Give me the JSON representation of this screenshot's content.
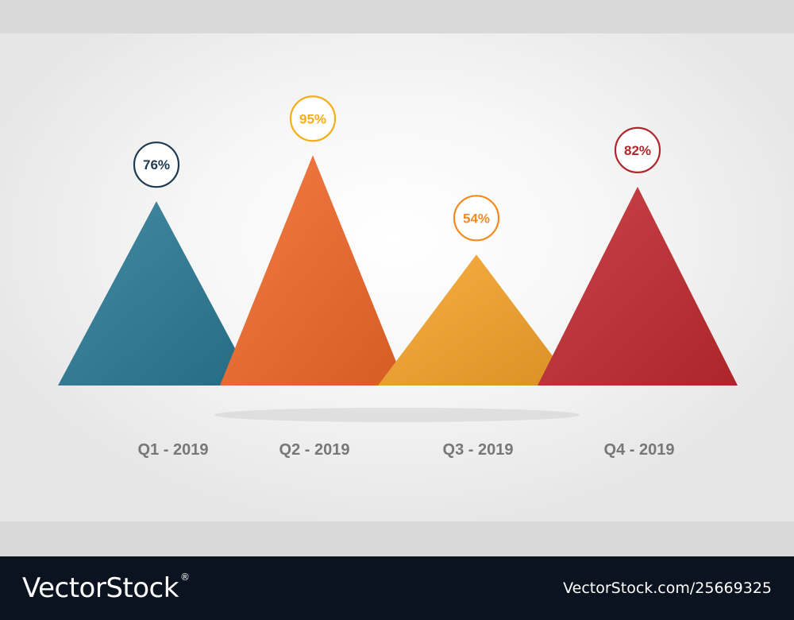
{
  "chart_data": {
    "type": "bar",
    "categories": [
      "Q1 - 2019",
      "Q2 - 2019",
      "Q3 - 2019",
      "Q4 - 2019"
    ],
    "values": [
      76,
      95,
      54,
      82
    ],
    "value_labels": [
      "76%",
      "95%",
      "54%",
      "82%"
    ],
    "title": "",
    "xlabel": "",
    "ylabel": "",
    "ylim": [
      0,
      100
    ],
    "grid": false,
    "legend": "none",
    "colors": [
      "#2a7a95",
      "#f26a2a",
      "#f7a42a",
      "#c22a30"
    ],
    "label_colors": [
      "#1d3a52",
      "#f5ae18",
      "#f28a1f",
      "#b0262b"
    ],
    "axis_label_color": "#777777"
  },
  "watermark": {
    "brand": "VectorStock",
    "registered": "®",
    "url": "VectorStock.com/25669325"
  }
}
